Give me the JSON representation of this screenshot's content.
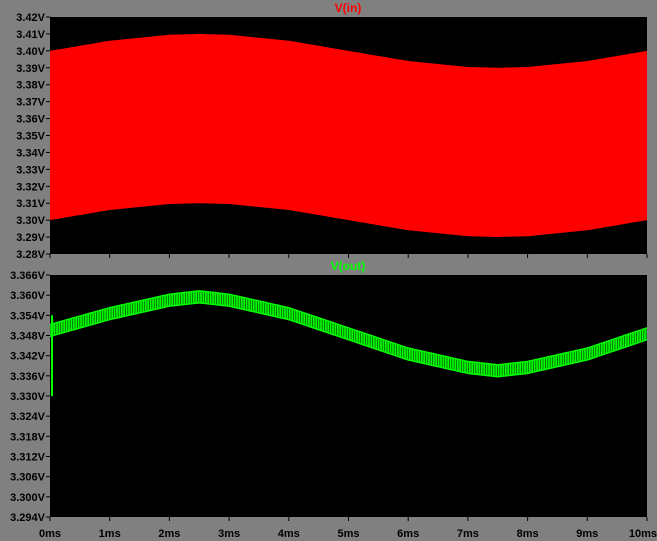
{
  "window_bg": "#808080",
  "plot_bg": "#000000",
  "chart_data": [
    {
      "type": "line",
      "title": "V(in)",
      "color": "#ff0000",
      "rendering": "filled-envelope",
      "xlim": [
        0,
        10
      ],
      "ylim": [
        3.28,
        3.42
      ],
      "yticks": [
        3.28,
        3.29,
        3.3,
        3.31,
        3.32,
        3.33,
        3.34,
        3.35,
        3.36,
        3.37,
        3.38,
        3.39,
        3.4,
        3.41,
        3.42
      ],
      "ytick_labels": [
        "3.28V",
        "3.29V",
        "3.30V",
        "3.31V",
        "3.32V",
        "3.33V",
        "3.34V",
        "3.35V",
        "3.36V",
        "3.37V",
        "3.38V",
        "3.39V",
        "3.40V",
        "3.41V",
        "3.42V"
      ],
      "xticks": [
        0,
        1,
        2,
        3,
        4,
        5,
        6,
        7,
        8,
        9,
        10
      ],
      "envelope": {
        "x": [
          0,
          1,
          2,
          2.5,
          3,
          4,
          5,
          6,
          7,
          7.5,
          8,
          9,
          10
        ],
        "upper": [
          3.4,
          3.406,
          3.4095,
          3.41,
          3.4095,
          3.406,
          3.4,
          3.394,
          3.3905,
          3.39,
          3.3905,
          3.394,
          3.4
        ],
        "lower": [
          3.3,
          3.306,
          3.3095,
          3.31,
          3.3095,
          3.306,
          3.3,
          3.294,
          3.2905,
          3.29,
          3.2905,
          3.294,
          3.3
        ]
      }
    },
    {
      "type": "line",
      "title": "V(out)",
      "color": "#00ff00",
      "rendering": "thick-ripple-band",
      "xlim": [
        0,
        10
      ],
      "ylim": [
        3.294,
        3.366
      ],
      "yticks": [
        3.294,
        3.3,
        3.306,
        3.312,
        3.318,
        3.324,
        3.33,
        3.336,
        3.342,
        3.348,
        3.354,
        3.36,
        3.366
      ],
      "ytick_labels": [
        "3.294V",
        "3.300V",
        "3.306V",
        "3.312V",
        "3.318V",
        "3.324V",
        "3.330V",
        "3.336V",
        "3.342V",
        "3.348V",
        "3.354V",
        "3.360V",
        "3.366V"
      ],
      "xticks": [
        0,
        1,
        2,
        3,
        4,
        5,
        6,
        7,
        8,
        9,
        10
      ],
      "xtick_labels": [
        "0ms",
        "1ms",
        "2ms",
        "3ms",
        "4ms",
        "5ms",
        "6ms",
        "7ms",
        "8ms",
        "9ms",
        "10ms"
      ],
      "startup": {
        "x": [
          0,
          0,
          0.01
        ],
        "y": [
          3.33,
          3.354,
          3.349
        ]
      },
      "band": {
        "x": [
          0,
          1,
          2,
          2.5,
          3,
          4,
          5,
          6,
          7,
          7.5,
          8,
          9,
          10
        ],
        "upper": [
          3.3515,
          3.3565,
          3.3605,
          3.3615,
          3.3605,
          3.3565,
          3.3505,
          3.3445,
          3.3405,
          3.3395,
          3.3405,
          3.3445,
          3.3505
        ],
        "lower": [
          3.3475,
          3.3525,
          3.3565,
          3.3575,
          3.3565,
          3.3525,
          3.3465,
          3.3405,
          3.3365,
          3.3355,
          3.3365,
          3.3405,
          3.3465
        ]
      }
    }
  ]
}
